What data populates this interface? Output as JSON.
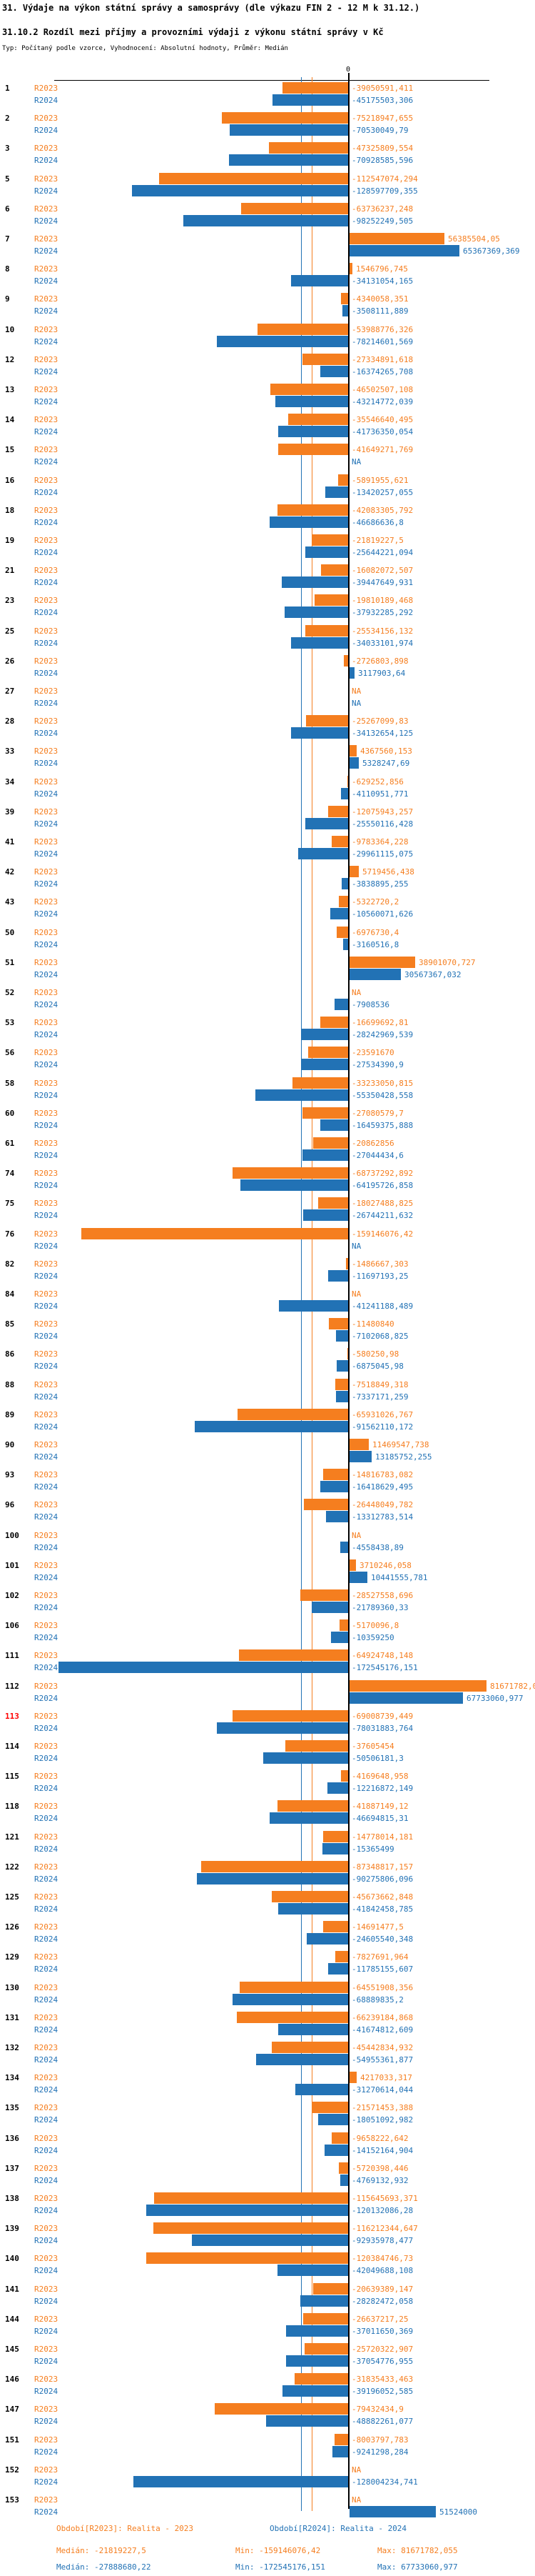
{
  "title": "31. Výdaje na výkon státní správy a samosprávy (dle výkazu FIN 2 - 12 M k 31.12.)",
  "subtitle": "31.10.2 Rozdíl mezi příjmy a provozními výdaji z výkonu státní správy v Kč",
  "meta_line": "Typ: Počítaný podle vzorce, Vyhodnocení: Absolutní hodnoty, Průměr: Medián",
  "na_label": "NA",
  "axis": {
    "zero_label": "0"
  },
  "colors": {
    "r2023": "#f57e1f",
    "r2024": "#2272b5",
    "axis": "#000000",
    "highlight_row_number": "#ff0000",
    "row_number": "#000000"
  },
  "series_labels": {
    "r2023": "R2023",
    "r2024": "R2024"
  },
  "footer": {
    "period_2023": "Období[R2023]: Realita - 2023",
    "period_2024": "Období[R2024]: Realita - 2024",
    "stats_2023": {
      "median": "Medián: -21819227,5",
      "min": "Min: -159146076,42",
      "max": "Max: 81671782,055"
    },
    "stats_2024": {
      "median": "Medián: -27888680,22",
      "min": "Min: -172545176,151",
      "max": "Max: 67733060,977"
    }
  },
  "chart_data": {
    "type": "bar",
    "orientation": "horizontal",
    "unit": "Kč",
    "decimal_separator": ",",
    "series": [
      "R2023",
      "R2024"
    ],
    "xlim": [
      -175000000,
      110000000
    ],
    "grid": false,
    "medians": {
      "R2023": -21819227.5,
      "R2024": -27888680.22
    },
    "mins": {
      "R2023": -159146076.42,
      "R2024": -172545176.151
    },
    "maxs": {
      "R2023": 81671782.055,
      "R2024": 67733060.977
    },
    "highlighted_rows": [
      "113"
    ],
    "rows": [
      {
        "n": "1",
        "R2023": "-39050591,411",
        "R2024": "-45175503,306"
      },
      {
        "n": "2",
        "R2023": "-75218947,655",
        "R2024": "-70530049,79"
      },
      {
        "n": "3",
        "R2023": "-47325809,554",
        "R2024": "-70928585,596"
      },
      {
        "n": "5",
        "R2023": "-112547074,294",
        "R2024": "-128597709,355"
      },
      {
        "n": "6",
        "R2023": "-63736237,248",
        "R2024": "-98252249,505"
      },
      {
        "n": "7",
        "R2023": "56385504,05",
        "R2024": "65367369,369"
      },
      {
        "n": "8",
        "R2023": "1546796,745",
        "R2024": "-34131054,165"
      },
      {
        "n": "9",
        "R2023": "-4340058,351",
        "R2024": "-3508111,889"
      },
      {
        "n": "10",
        "R2023": "-53988776,326",
        "R2024": "-78214601,569"
      },
      {
        "n": "12",
        "R2023": "-27334891,618",
        "R2024": "-16374265,708"
      },
      {
        "n": "13",
        "R2023": "-46502507,108",
        "R2024": "-43214772,039"
      },
      {
        "n": "14",
        "R2023": "-35546640,495",
        "R2024": "-41736350,054"
      },
      {
        "n": "15",
        "R2023": "-41649271,769",
        "R2024": "NA"
      },
      {
        "n": "16",
        "R2023": "-5891955,621",
        "R2024": "-13420257,055"
      },
      {
        "n": "18",
        "R2023": "-42083305,792",
        "R2024": "-46686636,8"
      },
      {
        "n": "19",
        "R2023": "-21819227,5",
        "R2024": "-25644221,094"
      },
      {
        "n": "21",
        "R2023": "-16082072,507",
        "R2024": "-39447649,931"
      },
      {
        "n": "23",
        "R2023": "-19810189,468",
        "R2024": "-37932285,292"
      },
      {
        "n": "25",
        "R2023": "-25534156,132",
        "R2024": "-34033101,974"
      },
      {
        "n": "26",
        "R2023": "-2726803,898",
        "R2024": "3117903,64"
      },
      {
        "n": "27",
        "R2023": "NA",
        "R2024": "NA"
      },
      {
        "n": "28",
        "R2023": "-25267099,83",
        "R2024": "-34132654,125"
      },
      {
        "n": "33",
        "R2023": "4367560,153",
        "R2024": "5328247,69"
      },
      {
        "n": "34",
        "R2023": "-629252,856",
        "R2024": "-4110951,771"
      },
      {
        "n": "39",
        "R2023": "-12075943,257",
        "R2024": "-25550116,428"
      },
      {
        "n": "41",
        "R2023": "-9783364,228",
        "R2024": "-29961115,075"
      },
      {
        "n": "42",
        "R2023": "5719456,438",
        "R2024": "-3838895,255"
      },
      {
        "n": "43",
        "R2023": "-5322720,2",
        "R2024": "-10560071,626"
      },
      {
        "n": "50",
        "R2023": "-6976730,4",
        "R2024": "-3160516,8"
      },
      {
        "n": "51",
        "R2023": "38901070,727",
        "R2024": "30567367,032"
      },
      {
        "n": "52",
        "R2023": "NA",
        "R2024": "-7908536"
      },
      {
        "n": "53",
        "R2023": "-16699692,81",
        "R2024": "-28242969,539"
      },
      {
        "n": "56",
        "R2023": "-23591670",
        "R2024": "-27534390,9"
      },
      {
        "n": "58",
        "R2023": "-33233050,815",
        "R2024": "-55350428,558"
      },
      {
        "n": "60",
        "R2023": "-27080579,7",
        "R2024": "-16459375,888"
      },
      {
        "n": "61",
        "R2023": "-20862856",
        "R2024": "-27044434,6"
      },
      {
        "n": "74",
        "R2023": "-68737292,892",
        "R2024": "-64195726,858"
      },
      {
        "n": "75",
        "R2023": "-18027488,825",
        "R2024": "-26744211,632"
      },
      {
        "n": "76",
        "R2023": "-159146076,42",
        "R2024": "NA"
      },
      {
        "n": "82",
        "R2023": "-1486667,303",
        "R2024": "-11697193,25"
      },
      {
        "n": "84",
        "R2023": "NA",
        "R2024": "-41241188,489"
      },
      {
        "n": "85",
        "R2023": "-11480840",
        "R2024": "-7102068,825"
      },
      {
        "n": "86",
        "R2023": "-580250,98",
        "R2024": "-6875045,98"
      },
      {
        "n": "88",
        "R2023": "-7518849,318",
        "R2024": "-7337171,259"
      },
      {
        "n": "89",
        "R2023": "-65931026,767",
        "R2024": "-91562110,172"
      },
      {
        "n": "90",
        "R2023": "11469547,738",
        "R2024": "13185752,255"
      },
      {
        "n": "93",
        "R2023": "-14816783,082",
        "R2024": "-16418629,495"
      },
      {
        "n": "96",
        "R2023": "-26448049,782",
        "R2024": "-13312783,514"
      },
      {
        "n": "100",
        "R2023": "NA",
        "R2024": "-4558438,89"
      },
      {
        "n": "101",
        "R2023": "3710246,058",
        "R2024": "10441555,781"
      },
      {
        "n": "102",
        "R2023": "-28527558,696",
        "R2024": "-21789360,33"
      },
      {
        "n": "106",
        "R2023": "-5170096,8",
        "R2024": "-10359250"
      },
      {
        "n": "111",
        "R2023": "-64924748,148",
        "R2024": "-172545176,151"
      },
      {
        "n": "112",
        "R2023": "81671782,055",
        "R2024": "67733060,977"
      },
      {
        "n": "113",
        "R2023": "-69008739,449",
        "R2024": "-78031883,764"
      },
      {
        "n": "114",
        "R2023": "-37605454",
        "R2024": "-50506181,3"
      },
      {
        "n": "115",
        "R2023": "-4169648,958",
        "R2024": "-12216872,149"
      },
      {
        "n": "118",
        "R2023": "-41887149,12",
        "R2024": "-46694815,31"
      },
      {
        "n": "121",
        "R2023": "-14778014,181",
        "R2024": "-15365499"
      },
      {
        "n": "122",
        "R2023": "-87348817,157",
        "R2024": "-90275806,096"
      },
      {
        "n": "125",
        "R2023": "-45673662,848",
        "R2024": "-41842458,785"
      },
      {
        "n": "126",
        "R2023": "-14691477,5",
        "R2024": "-24605540,348"
      },
      {
        "n": "129",
        "R2023": "-7827691,964",
        "R2024": "-11785155,607"
      },
      {
        "n": "130",
        "R2023": "-64551908,356",
        "R2024": "-68889835,2"
      },
      {
        "n": "131",
        "R2023": "-66239184,868",
        "R2024": "-41674812,609"
      },
      {
        "n": "132",
        "R2023": "-45442834,932",
        "R2024": "-54955361,877"
      },
      {
        "n": "134",
        "R2023": "4217033,317",
        "R2024": "-31270614,044"
      },
      {
        "n": "135",
        "R2023": "-21571453,388",
        "R2024": "-18051092,982"
      },
      {
        "n": "136",
        "R2023": "-9658222,642",
        "R2024": "-14152164,904"
      },
      {
        "n": "137",
        "R2023": "-5720398,446",
        "R2024": "-4769132,932"
      },
      {
        "n": "138",
        "R2023": "-115645693,371",
        "R2024": "-120132086,28"
      },
      {
        "n": "139",
        "R2023": "-116212344,647",
        "R2024": "-92935978,477"
      },
      {
        "n": "140",
        "R2023": "-120384746,73",
        "R2024": "-42049688,108"
      },
      {
        "n": "141",
        "R2023": "-20639389,147",
        "R2024": "-28282472,058"
      },
      {
        "n": "144",
        "R2023": "-26637217,25",
        "R2024": "-37011650,369"
      },
      {
        "n": "145",
        "R2023": "-25720322,907",
        "R2024": "-37054776,955"
      },
      {
        "n": "146",
        "R2023": "-31835433,463",
        "R2024": "-39196052,585"
      },
      {
        "n": "147",
        "R2023": "-79432434,9",
        "R2024": "-48882261,077"
      },
      {
        "n": "151",
        "R2023": "-8003797,783",
        "R2024": "-9241298,284"
      },
      {
        "n": "152",
        "R2023": "NA",
        "R2024": "-128004234,741"
      },
      {
        "n": "153",
        "R2023": "NA",
        "R2024": "51524000"
      }
    ]
  }
}
